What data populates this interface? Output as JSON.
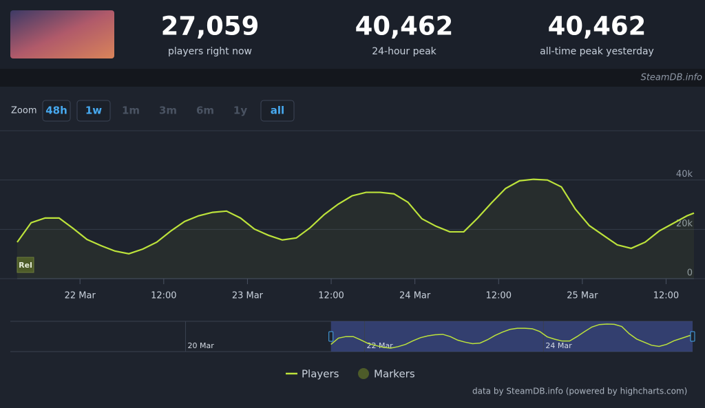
{
  "stats": [
    {
      "value": "27,059",
      "label": "players right now"
    },
    {
      "value": "40,462",
      "label": "24-hour peak"
    },
    {
      "value": "40,462",
      "label": "all-time peak yesterday"
    }
  ],
  "watermark": "SteamDB.info",
  "zoom": {
    "label": "Zoom",
    "buttons": [
      {
        "text": "48h",
        "state": "enabled"
      },
      {
        "text": "1w",
        "state": "enabled"
      },
      {
        "text": "1m",
        "state": "disabled"
      },
      {
        "text": "3m",
        "state": "disabled"
      },
      {
        "text": "6m",
        "state": "disabled"
      },
      {
        "text": "1y",
        "state": "disabled"
      },
      {
        "text": "all",
        "state": "enabled"
      }
    ]
  },
  "credits": "data by SteamDB.info (powered by highcharts.com)",
  "chart_data": {
    "type": "line",
    "x": [
      "21 Mar 15:00",
      "21 Mar 17:00",
      "21 Mar 19:00",
      "21 Mar 21:00",
      "21 Mar 23:00",
      "22 Mar 01:00",
      "22 Mar 03:00",
      "22 Mar 05:00",
      "22 Mar 07:00",
      "22 Mar 09:00",
      "22 Mar 11:00",
      "22 Mar 13:00",
      "22 Mar 15:00",
      "22 Mar 17:00",
      "22 Mar 19:00",
      "22 Mar 21:00",
      "22 Mar 23:00",
      "23 Mar 01:00",
      "23 Mar 03:00",
      "23 Mar 05:00",
      "23 Mar 07:00",
      "23 Mar 09:00",
      "23 Mar 11:00",
      "23 Mar 13:00",
      "23 Mar 15:00",
      "23 Mar 17:00",
      "23 Mar 19:00",
      "23 Mar 21:00",
      "23 Mar 23:00",
      "24 Mar 01:00",
      "24 Mar 03:00",
      "24 Mar 05:00",
      "24 Mar 07:00",
      "24 Mar 09:00",
      "24 Mar 11:00",
      "24 Mar 13:00",
      "24 Mar 15:00",
      "24 Mar 17:00",
      "24 Mar 19:00",
      "24 Mar 21:00",
      "24 Mar 23:00",
      "25 Mar 01:00",
      "25 Mar 03:00",
      "25 Mar 05:00",
      "25 Mar 07:00",
      "25 Mar 09:00",
      "25 Mar 11:00",
      "25 Mar 13:00",
      "25 Mar 15:00",
      "25 Mar 16:00"
    ],
    "series": [
      {
        "name": "Players",
        "color": "#bde33b",
        "values": [
          14800,
          22700,
          24600,
          24600,
          20400,
          15900,
          13400,
          11200,
          10100,
          12000,
          14800,
          19300,
          23200,
          25500,
          26900,
          27400,
          24600,
          20100,
          17600,
          15700,
          16500,
          20700,
          26000,
          30200,
          33600,
          35000,
          35000,
          34400,
          31000,
          24300,
          21300,
          19000,
          19000,
          24600,
          30800,
          36600,
          39700,
          40300,
          40000,
          37200,
          28200,
          21500,
          17600,
          13700,
          12300,
          14800,
          19300,
          22400,
          25500,
          26600
        ]
      }
    ],
    "markers": {
      "name": "Markers",
      "color": "#4d5b29",
      "points": [
        {
          "x": "21 Mar 15:00",
          "label": "Rel"
        }
      ]
    },
    "xlim": [
      "21 Mar 15:00",
      "25 Mar 16:00"
    ],
    "xticks": [
      {
        "value": "22 Mar 00:00",
        "label": "22 Mar"
      },
      {
        "value": "22 Mar 12:00",
        "label": "12:00"
      },
      {
        "value": "23 Mar 00:00",
        "label": "23 Mar"
      },
      {
        "value": "23 Mar 12:00",
        "label": "12:00"
      },
      {
        "value": "24 Mar 00:00",
        "label": "24 Mar"
      },
      {
        "value": "24 Mar 12:00",
        "label": "12:00"
      },
      {
        "value": "25 Mar 00:00",
        "label": "25 Mar"
      },
      {
        "value": "25 Mar 12:00",
        "label": "12:00"
      }
    ],
    "ylim": [
      0,
      60000
    ],
    "yticks": [
      0,
      {
        "value": 20000,
        "label": "20k"
      },
      {
        "value": 40000,
        "label": "40k"
      }
    ],
    "grid": true,
    "navigator": {
      "xlim": [
        "18 Mar 01:00",
        "25 Mar 16:00"
      ],
      "xticks": [
        {
          "value": "20 Mar 00:00",
          "label": "20 Mar"
        },
        {
          "value": "22 Mar 00:00",
          "label": "22 Mar"
        },
        {
          "value": "24 Mar 00:00",
          "label": "24 Mar"
        }
      ]
    }
  }
}
